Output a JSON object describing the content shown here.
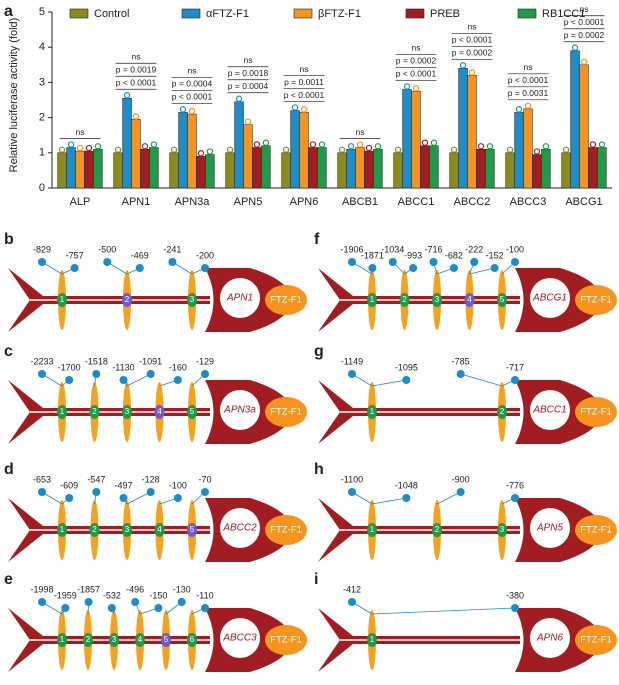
{
  "chart_data": {
    "type": "bar",
    "panel": "a",
    "ylabel": "Relative luciferase activity (fold)",
    "categories": [
      "ALP",
      "APN1",
      "APN3a",
      "APN5",
      "APN6",
      "ABCB1",
      "ABCC1",
      "ABCC2",
      "ABCC3",
      "ABCG1"
    ],
    "series": [
      {
        "name": "Control",
        "color": "#8c8a1c",
        "values": [
          1.0,
          1.0,
          1.0,
          1.0,
          1.0,
          1.0,
          1.0,
          1.0,
          1.0,
          1.0
        ]
      },
      {
        "name": "αFTZ-F1",
        "color": "#1b8dcb",
        "values": [
          1.15,
          2.55,
          2.15,
          2.45,
          2.2,
          1.1,
          2.8,
          3.4,
          2.15,
          3.9
        ]
      },
      {
        "name": "βFTZ-F1",
        "color": "#f7941d",
        "values": [
          1.05,
          1.95,
          2.1,
          1.8,
          2.15,
          1.15,
          2.75,
          3.2,
          2.25,
          3.5
        ]
      },
      {
        "name": "PREB",
        "color": "#a11d22",
        "values": [
          1.05,
          1.1,
          0.9,
          1.15,
          1.15,
          1.05,
          1.2,
          1.1,
          0.95,
          1.15
        ]
      },
      {
        "name": "RB1CC1",
        "color": "#1f9a48",
        "values": [
          1.1,
          1.15,
          0.95,
          1.2,
          1.15,
          1.1,
          1.2,
          1.1,
          1.1,
          1.15
        ]
      }
    ],
    "annotations": [
      [
        "ns"
      ],
      [
        "ns",
        "p = 0.0019",
        "p < 0.0001"
      ],
      [
        "ns",
        "p = 0.0004",
        "p < 0.0001"
      ],
      [
        "ns",
        "p = 0.0018",
        "p = 0.0004"
      ],
      [
        "ns",
        "p = 0.0011",
        "p < 0.0001"
      ],
      [
        "ns"
      ],
      [
        "ns",
        "p = 0.0002",
        "p < 0.0001"
      ],
      [
        "ns",
        "p < 0.0001",
        "p = 0.0002"
      ],
      [
        "ns",
        "p < 0.0001",
        "p = 0.0031"
      ],
      [
        "ns",
        "p < 0.0001",
        "p = 0.0002"
      ]
    ],
    "ylim": [
      0,
      5
    ],
    "yticks": [
      0,
      1,
      2,
      3,
      4,
      5
    ]
  },
  "diagrams": [
    {
      "panel": "b",
      "gene": "APN1",
      "factor": "FTZ-F1",
      "positions": [
        "-829",
        "-757",
        "-500",
        "-469",
        "-241",
        "-200"
      ],
      "sites": [
        {
          "label": "1",
          "color": "#1f9a48"
        },
        {
          "label": "2",
          "color": "#6b5bd6"
        },
        {
          "label": "3",
          "color": "#1f9a48"
        }
      ]
    },
    {
      "panel": "c",
      "gene": "APN3a",
      "factor": "FTZ-F1",
      "positions": [
        "-2233",
        "-1700",
        "-1518",
        "-1130",
        "-1091",
        "-160",
        "-129"
      ],
      "sites": [
        {
          "label": "1",
          "color": "#1f9a48"
        },
        {
          "label": "2",
          "color": "#1f9a48"
        },
        {
          "label": "3",
          "color": "#1f9a48"
        },
        {
          "label": "4",
          "color": "#6b5bd6"
        },
        {
          "label": "5",
          "color": "#1f9a48"
        }
      ]
    },
    {
      "panel": "d",
      "gene": "ABCC2",
      "factor": "FTZ-F1",
      "positions": [
        "-653",
        "-609",
        "-547",
        "-497",
        "-128",
        "-100",
        "-70"
      ],
      "sites": [
        {
          "label": "1",
          "color": "#1f9a48"
        },
        {
          "label": "2",
          "color": "#1f9a48"
        },
        {
          "label": "3",
          "color": "#1f9a48"
        },
        {
          "label": "4",
          "color": "#1f9a48"
        },
        {
          "label": "5",
          "color": "#6b5bd6"
        }
      ]
    },
    {
      "panel": "e",
      "gene": "ABCC3",
      "factor": "FTZ-F1",
      "positions": [
        "-1998",
        "-1959",
        "-1857",
        "-532",
        "-496",
        "-150",
        "-130",
        "-110"
      ],
      "sites": [
        {
          "label": "1",
          "color": "#1f9a48"
        },
        {
          "label": "2",
          "color": "#1f9a48"
        },
        {
          "label": "3",
          "color": "#1f9a48"
        },
        {
          "label": "4",
          "color": "#1f9a48"
        },
        {
          "label": "5",
          "color": "#6b5bd6"
        },
        {
          "label": "6",
          "color": "#1f9a48"
        }
      ]
    },
    {
      "panel": "f",
      "gene": "ABCG1",
      "factor": "FTZ-F1",
      "positions": [
        "-1906",
        "-1871",
        "-1034",
        "-993",
        "-716",
        "-682",
        "-222",
        "-152",
        "-100"
      ],
      "sites": [
        {
          "label": "1",
          "color": "#1f9a48"
        },
        {
          "label": "2",
          "color": "#1f9a48"
        },
        {
          "label": "3",
          "color": "#1f9a48"
        },
        {
          "label": "4",
          "color": "#6b5bd6"
        },
        {
          "label": "5",
          "color": "#1f9a48"
        }
      ]
    },
    {
      "panel": "g",
      "gene": "ABCC1",
      "factor": "FTZ-F1",
      "positions": [
        "-1149",
        "-1095",
        "-785",
        "-717"
      ],
      "sites": [
        {
          "label": "1",
          "color": "#1f9a48"
        },
        {
          "label": "2",
          "color": "#1f9a48"
        }
      ]
    },
    {
      "panel": "h",
      "gene": "APN5",
      "factor": "FTZ-F1",
      "positions": [
        "-1100",
        "-1048",
        "-900",
        "-776"
      ],
      "sites": [
        {
          "label": "1",
          "color": "#1f9a48"
        },
        {
          "label": "2",
          "color": "#1f9a48"
        },
        {
          "label": "3",
          "color": "#1f9a48"
        }
      ]
    },
    {
      "panel": "i",
      "gene": "APN6",
      "factor": "FTZ-F1",
      "positions": [
        "-412",
        "-380"
      ],
      "sites": [
        {
          "label": "1",
          "color": "#1f9a48"
        }
      ]
    }
  ]
}
